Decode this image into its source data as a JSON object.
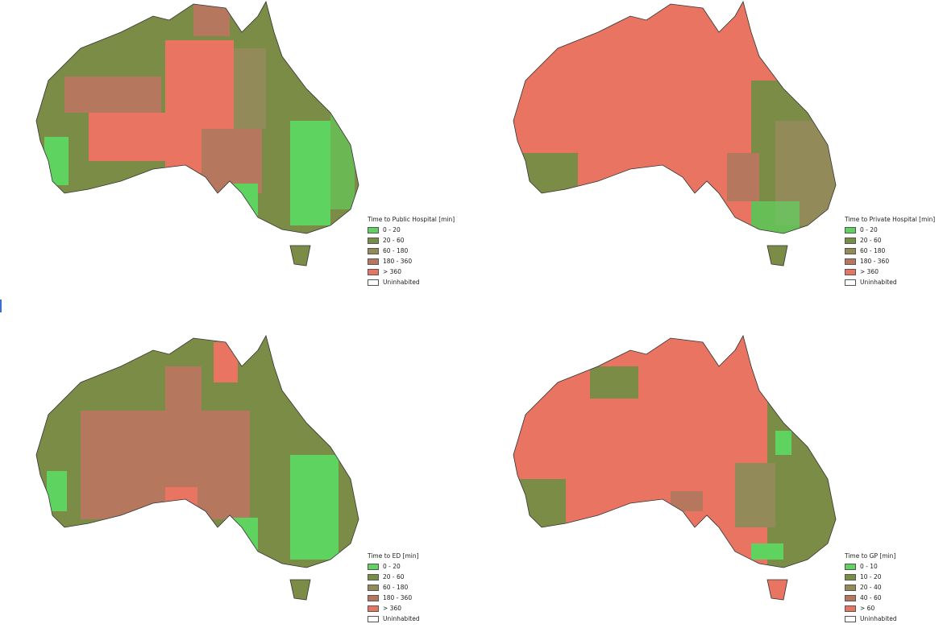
{
  "maps": [
    {
      "legend": {
        "title": "Time to Public Hospital [min]",
        "items": [
          {
            "label": "0 - 20",
            "color": "#5fd35f"
          },
          {
            "label": "20 - 60",
            "color": "#7a8c45"
          },
          {
            "label": "60 - 180",
            "color": "#938a5a"
          },
          {
            "label": "180 - 360",
            "color": "#b5775e"
          },
          {
            "label": "> 360",
            "color": "#e87461"
          },
          {
            "label": "Uninhabited",
            "color": "#ffffff"
          }
        ]
      }
    },
    {
      "legend": {
        "title": "Time to Private Hospital [min]",
        "items": [
          {
            "label": "0 - 20",
            "color": "#5fd35f"
          },
          {
            "label": "20 - 60",
            "color": "#7a8c45"
          },
          {
            "label": "60 - 180",
            "color": "#938a5a"
          },
          {
            "label": "180 - 360",
            "color": "#b5775e"
          },
          {
            "label": "> 360",
            "color": "#e87461"
          },
          {
            "label": "Uninhabited",
            "color": "#ffffff"
          }
        ]
      }
    },
    {
      "legend": {
        "title": "Time to ED [min]",
        "items": [
          {
            "label": "0 - 20",
            "color": "#5fd35f"
          },
          {
            "label": "20 - 60",
            "color": "#7a8c45"
          },
          {
            "label": "60 - 180",
            "color": "#938a5a"
          },
          {
            "label": "180 - 360",
            "color": "#b5775e"
          },
          {
            "label": "> 360",
            "color": "#e87461"
          },
          {
            "label": "Uninhabited",
            "color": "#ffffff"
          }
        ]
      }
    },
    {
      "legend": {
        "title": "Time to GP [min]",
        "items": [
          {
            "label": "0 - 10",
            "color": "#5fd35f"
          },
          {
            "label": "10 - 20",
            "color": "#7a8c45"
          },
          {
            "label": "20 - 40",
            "color": "#938a5a"
          },
          {
            "label": "40 - 60",
            "color": "#b5775e"
          },
          {
            "label": "> 60",
            "color": "#e87461"
          },
          {
            "label": "Uninhabited",
            "color": "#ffffff"
          }
        ]
      }
    }
  ]
}
